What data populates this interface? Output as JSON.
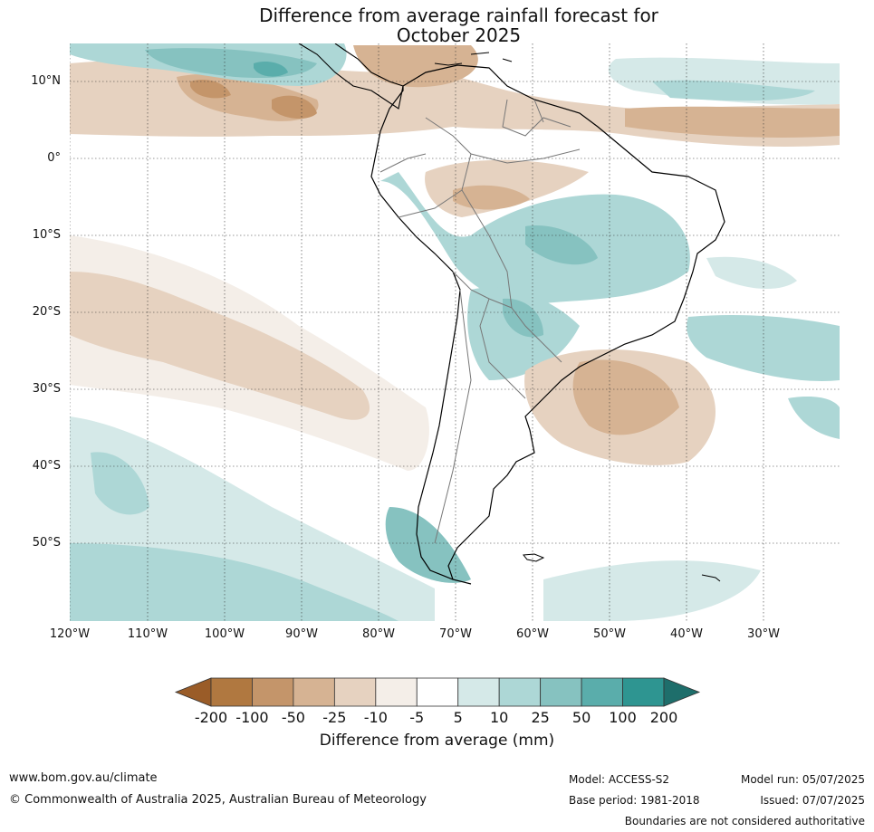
{
  "title": {
    "line1": "Difference from average rainfall forecast for",
    "line2": "October 2025"
  },
  "map": {
    "lat_labels": [
      "10°N",
      "0°",
      "10°S",
      "20°S",
      "30°S",
      "40°S",
      "50°S"
    ],
    "lon_labels": [
      "120°W",
      "110°W",
      "100°W",
      "90°W",
      "80°W",
      "70°W",
      "60°W",
      "50°W",
      "40°W",
      "30°W"
    ],
    "gridlines": true
  },
  "colorbar": {
    "title": "Difference from average (mm)",
    "ticks": [
      "-200",
      "-100",
      "-50",
      "-25",
      "-10",
      "-5",
      "5",
      "10",
      "25",
      "50",
      "100",
      "200"
    ],
    "colors": [
      "#9a5c28",
      "#b07840",
      "#c4956a",
      "#d6b393",
      "#e6d2c0",
      "#f4eee8",
      "#ffffff",
      "#d5e9e8",
      "#add7d6",
      "#86c2c0",
      "#5aadab",
      "#2e9591",
      "#1e6e6b"
    ]
  },
  "footer": {
    "website": "www.bom.gov.au/climate",
    "copyright": "© Commonwealth of Australia 2025, Australian Bureau of Meteorology",
    "model": "Model: ACCESS-S2",
    "base_period": "Base period: 1981-2018",
    "model_run": "Model run: 05/07/2025",
    "issued": "Issued: 07/07/2025",
    "disclaimer": "Boundaries are not considered authoritative"
  }
}
